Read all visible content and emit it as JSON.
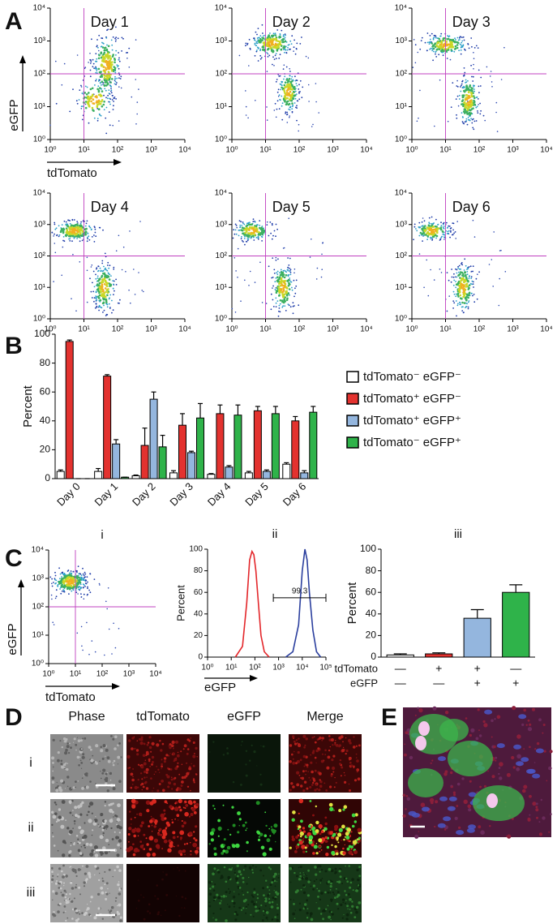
{
  "panel_labels": [
    "A",
    "B",
    "C",
    "D",
    "E"
  ],
  "chart_data": [
    {
      "type": "density",
      "title": "Day 1",
      "xlabel": "tdTomato",
      "ylabel": "eGFP",
      "xscale": "log",
      "yscale": "log",
      "xlim": [
        1,
        10000
      ],
      "ylim": [
        1,
        10000
      ],
      "xticks": [
        {
          "value": 1,
          "label": "10⁰"
        },
        {
          "value": 10,
          "label": "10¹"
        },
        {
          "value": 100,
          "label": "10²"
        },
        {
          "value": 1000,
          "label": "10³"
        },
        {
          "value": 10000,
          "label": "10⁴"
        }
      ],
      "yticks": [
        {
          "value": 1,
          "label": "10⁰"
        },
        {
          "value": 10,
          "label": "10¹"
        },
        {
          "value": 100,
          "label": "10²"
        },
        {
          "value": 1000,
          "label": "10³"
        },
        {
          "value": 10000,
          "label": "10⁴"
        }
      ],
      "gates": {
        "x": 10,
        "y": 100
      },
      "gate_color": "#c040c0"
    },
    {
      "type": "density",
      "title": "Day 2",
      "xscale": "log",
      "yscale": "log",
      "xlim": [
        1,
        10000
      ],
      "ylim": [
        1,
        10000
      ],
      "xticks": [
        {
          "value": 1,
          "label": "10⁰"
        },
        {
          "value": 10,
          "label": "10¹"
        },
        {
          "value": 100,
          "label": "10²"
        },
        {
          "value": 1000,
          "label": "10³"
        },
        {
          "value": 10000,
          "label": "10⁴"
        }
      ],
      "yticks": [
        {
          "value": 1,
          "label": "10⁰"
        },
        {
          "value": 10,
          "label": "10¹"
        },
        {
          "value": 100,
          "label": "10²"
        },
        {
          "value": 1000,
          "label": "10³"
        },
        {
          "value": 10000,
          "label": "10⁴"
        }
      ],
      "gates": {
        "x": 10,
        "y": 100
      },
      "gate_color": "#c040c0"
    },
    {
      "type": "density",
      "title": "Day 3",
      "xscale": "log",
      "yscale": "log",
      "xlim": [
        1,
        10000
      ],
      "ylim": [
        1,
        10000
      ],
      "xticks": [
        {
          "value": 1,
          "label": "10⁰"
        },
        {
          "value": 10,
          "label": "10¹"
        },
        {
          "value": 100,
          "label": "10²"
        },
        {
          "value": 1000,
          "label": "10³"
        },
        {
          "value": 10000,
          "label": "10⁴"
        }
      ],
      "yticks": [
        {
          "value": 1,
          "label": "10⁰"
        },
        {
          "value": 10,
          "label": "10¹"
        },
        {
          "value": 100,
          "label": "10²"
        },
        {
          "value": 1000,
          "label": "10³"
        },
        {
          "value": 10000,
          "label": "10⁴"
        }
      ],
      "gates": {
        "x": 10,
        "y": 100
      },
      "gate_color": "#c040c0"
    },
    {
      "type": "density",
      "title": "Day 4",
      "xscale": "log",
      "yscale": "log",
      "xlim": [
        1,
        10000
      ],
      "ylim": [
        1,
        10000
      ],
      "xticks": [
        {
          "value": 1,
          "label": "10⁰"
        },
        {
          "value": 10,
          "label": "10¹"
        },
        {
          "value": 100,
          "label": "10²"
        },
        {
          "value": 1000,
          "label": "10³"
        },
        {
          "value": 10000,
          "label": "10⁴"
        }
      ],
      "yticks": [
        {
          "value": 1,
          "label": "10⁰"
        },
        {
          "value": 10,
          "label": "10¹"
        },
        {
          "value": 100,
          "label": "10²"
        },
        {
          "value": 1000,
          "label": "10³"
        },
        {
          "value": 10000,
          "label": "10⁴"
        }
      ],
      "gates": {
        "x": 10,
        "y": 100
      },
      "gate_color": "#c040c0"
    },
    {
      "type": "density",
      "title": "Day 5",
      "xscale": "log",
      "yscale": "log",
      "xlim": [
        1,
        10000
      ],
      "ylim": [
        1,
        10000
      ],
      "xticks": [
        {
          "value": 1,
          "label": "10⁰"
        },
        {
          "value": 10,
          "label": "10¹"
        },
        {
          "value": 100,
          "label": "10²"
        },
        {
          "value": 1000,
          "label": "10³"
        },
        {
          "value": 10000,
          "label": "10⁴"
        }
      ],
      "yticks": [
        {
          "value": 1,
          "label": "10⁰"
        },
        {
          "value": 10,
          "label": "10¹"
        },
        {
          "value": 100,
          "label": "10²"
        },
        {
          "value": 1000,
          "label": "10³"
        },
        {
          "value": 10000,
          "label": "10⁴"
        }
      ],
      "gates": {
        "x": 10,
        "y": 100
      },
      "gate_color": "#c040c0"
    },
    {
      "type": "density",
      "title": "Day 6",
      "xscale": "log",
      "yscale": "log",
      "xlim": [
        1,
        10000
      ],
      "ylim": [
        1,
        10000
      ],
      "xticks": [
        {
          "value": 1,
          "label": "10⁰"
        },
        {
          "value": 10,
          "label": "10¹"
        },
        {
          "value": 100,
          "label": "10²"
        },
        {
          "value": 1000,
          "label": "10³"
        },
        {
          "value": 10000,
          "label": "10⁴"
        }
      ],
      "yticks": [
        {
          "value": 1,
          "label": "10⁰"
        },
        {
          "value": 10,
          "label": "10¹"
        },
        {
          "value": 100,
          "label": "10²"
        },
        {
          "value": 1000,
          "label": "10³"
        },
        {
          "value": 10000,
          "label": "10⁴"
        }
      ],
      "gates": {
        "x": 10,
        "y": 100
      },
      "gate_color": "#c040c0"
    },
    {
      "type": "bar",
      "ylabel": "Percent",
      "ylim": [
        0,
        100
      ],
      "yticks": [
        0,
        20,
        40,
        60,
        80,
        100
      ],
      "legend": "right",
      "categories": [
        "Day 0",
        "Day 1",
        "Day 2",
        "Day 3",
        "Day 4",
        "Day 5",
        "Day 6"
      ],
      "series": [
        {
          "name": "tdTomato⁻ eGFP⁻",
          "color": "#ffffff",
          "values": [
            5,
            5,
            2,
            4,
            3,
            4,
            10
          ],
          "errors": [
            1,
            2,
            0.5,
            1.5,
            0.5,
            1,
            1
          ]
        },
        {
          "name": "tdTomato⁺ eGFP⁻",
          "color": "#e3322f",
          "values": [
            95,
            71,
            23,
            37,
            45,
            47,
            40
          ],
          "errors": [
            1,
            1,
            12,
            8,
            6,
            3,
            3
          ]
        },
        {
          "name": "tdTomato⁺ eGFP⁺",
          "color": "#94b6de",
          "values": [
            0,
            24,
            55,
            18,
            8,
            5,
            4
          ],
          "errors": [
            0,
            3,
            5,
            1,
            1,
            1,
            1.5
          ]
        },
        {
          "name": "tdTomato⁻ eGFP⁺",
          "color": "#2fb34a",
          "values": [
            0,
            1,
            22,
            42,
            44,
            45,
            46
          ],
          "errors": [
            0,
            0,
            8,
            10,
            7,
            5,
            4
          ]
        }
      ]
    },
    {
      "type": "density",
      "title": "i",
      "xlabel": "tdTomato",
      "ylabel": "eGFP",
      "xscale": "log",
      "yscale": "log",
      "xlim": [
        1,
        10000
      ],
      "ylim": [
        1,
        10000
      ],
      "xticks": [
        {
          "value": 1,
          "label": "10⁰"
        },
        {
          "value": 10,
          "label": "10¹"
        },
        {
          "value": 100,
          "label": "10²"
        },
        {
          "value": 1000,
          "label": "10³"
        },
        {
          "value": 10000,
          "label": "10⁴"
        }
      ],
      "yticks": [
        {
          "value": 1,
          "label": "10⁰"
        },
        {
          "value": 10,
          "label": "10¹"
        },
        {
          "value": 100,
          "label": "10²"
        },
        {
          "value": 1000,
          "label": "10³"
        },
        {
          "value": 10000,
          "label": "10⁴"
        }
      ],
      "gates": {
        "x": 10,
        "y": 100
      },
      "gate_color": "#c040c0"
    },
    {
      "type": "line",
      "title": "ii",
      "xlabel": "eGFP",
      "ylabel": "Percent",
      "xscale": "log",
      "xlim": [
        1,
        100000
      ],
      "ylim": [
        0,
        100
      ],
      "xticks": [
        {
          "value": 1,
          "label": "10⁰"
        },
        {
          "value": 10,
          "label": "10¹"
        },
        {
          "value": 100,
          "label": "10²"
        },
        {
          "value": 1000,
          "label": "10³"
        },
        {
          "value": 10000,
          "label": "10⁴"
        },
        {
          "value": 100000,
          "label": "10⁵"
        }
      ],
      "yticks": [
        0,
        20,
        40,
        60,
        80,
        100
      ],
      "series": [
        {
          "color": "#e3262a",
          "x": [
            15,
            30,
            45,
            60,
            75,
            90,
            110,
            140,
            180,
            250,
            400
          ],
          "values": [
            0,
            10,
            50,
            90,
            98,
            95,
            80,
            50,
            20,
            5,
            0
          ]
        },
        {
          "color": "#2b3f9e",
          "x": [
            2000,
            4000,
            7000,
            10000,
            13000,
            16000,
            20000,
            28000,
            40000,
            60000
          ],
          "values": [
            0,
            5,
            30,
            80,
            100,
            90,
            60,
            25,
            5,
            0
          ]
        }
      ],
      "gate_range": [
        600,
        100000
      ],
      "gate_percent": 99.3
    },
    {
      "type": "bar",
      "title": "iii",
      "ylabel": "Percent",
      "ylim": [
        0,
        100
      ],
      "yticks": [
        0,
        20,
        40,
        60,
        80,
        100
      ],
      "categories": [
        null,
        null,
        null,
        null
      ],
      "values": [
        2,
        3,
        36,
        60
      ],
      "errors": [
        1,
        1,
        8,
        7
      ],
      "colors": [
        "#ffffff",
        "#e3322f",
        "#94b6de",
        "#2fb34a"
      ],
      "conditions": [
        {
          "name": "tdTomato",
          "signs": [
            "—",
            "+",
            "+",
            "—"
          ]
        },
        {
          "name": "eGFP",
          "signs": [
            "—",
            "—",
            "+",
            "+"
          ]
        }
      ]
    }
  ],
  "panel_d": {
    "columns": [
      "Phase",
      "tdTomato",
      "eGFP",
      "Merge"
    ],
    "rows": [
      "i",
      "ii",
      "iii"
    ]
  }
}
